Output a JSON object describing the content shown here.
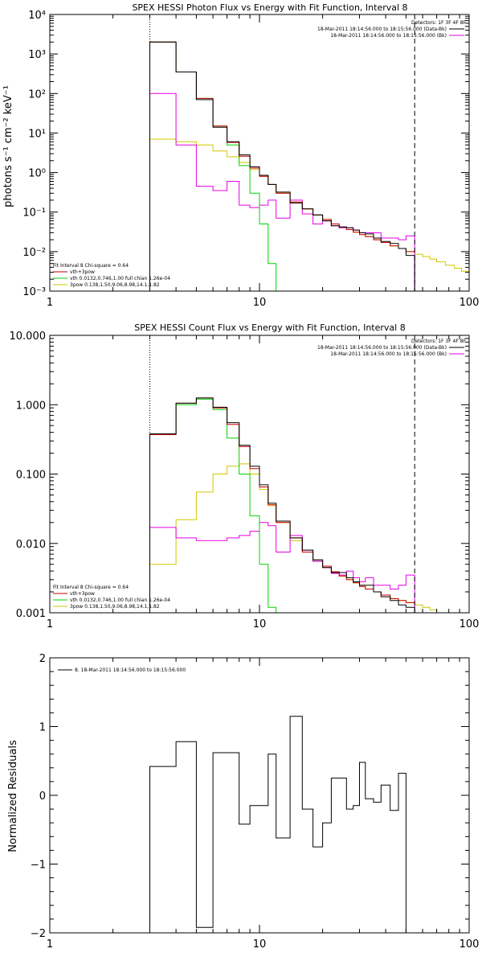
{
  "figure": {
    "xlabel": "",
    "colors": {
      "data": "#000000",
      "fit_total": "#c80000",
      "thermal": "#00d200",
      "power_law": "#d2c800",
      "background": "#e600e6"
    }
  },
  "chart_data": [
    {
      "type": "line",
      "title": "SPEX HESSI Photon Flux vs Energy with Fit Function, Interval 8",
      "ylabel": "photons s⁻¹ cm⁻² keV⁻¹",
      "xlim": [
        1,
        100
      ],
      "ylim": [
        0.001,
        10000
      ],
      "xscale": "log",
      "yscale": "log",
      "xticks": [
        1,
        10,
        100
      ],
      "xtick_labels": [
        "1",
        "10",
        "100"
      ],
      "yticks": [
        0.001,
        0.01,
        0.1,
        1,
        10,
        100,
        1000,
        10000
      ],
      "ytick_labels": [
        "10⁻³",
        "10⁻²",
        "10⁻¹",
        "10⁰",
        "10¹",
        "10²",
        "10³",
        "10⁴"
      ],
      "fit_range": [
        3,
        55
      ],
      "bin_edges": [
        3,
        4,
        5,
        6,
        7,
        8,
        9,
        10,
        11,
        12,
        14,
        16,
        18,
        20,
        22,
        24,
        26,
        28,
        30,
        32,
        35,
        38,
        42,
        46,
        50,
        55,
        60,
        65,
        70,
        77,
        85,
        92,
        100
      ],
      "legend_right": {
        "detectors": "Detectors: 1F 3F 4F 8F",
        "entries": [
          {
            "label": "18-Mar-2011 18:14:56.000 to 18:15:56.000 (Data-Bk)",
            "color_key": "data"
          },
          {
            "label": "18-Mar-2011 18:14:56.000 to 18:15:56.000 (Bk)",
            "color_key": "background"
          }
        ]
      },
      "legend_left": {
        "header": "Fit Interval 8   Chi-square = 0.64",
        "entries": [
          {
            "label": "vth+3pow",
            "color_key": "fit_total"
          },
          {
            "label": "vth 0.0132,0.746,1.00  full chian 1.26e-04",
            "color_key": "thermal"
          },
          {
            "label": "3pow 0.138,1.50,9.06,8.98,14.1,1.82",
            "color_key": "power_law"
          }
        ]
      },
      "series": [
        {
          "color_key": "power_law",
          "values": [
            7,
            6,
            5,
            3.5,
            2.5,
            1.8,
            1.2,
            0.8,
            0.5,
            0.3,
            0.18,
            0.12,
            0.085,
            0.065,
            0.05,
            0.042,
            0.036,
            0.031,
            0.027,
            0.024,
            0.02,
            0.017,
            0.014,
            0.012,
            0.01,
            0.0085,
            0.0075,
            0.0065,
            0.0055,
            0.0045,
            0.0038,
            0.0032
          ]
        },
        {
          "color_key": "background",
          "values": [
            100,
            5,
            0.45,
            0.35,
            0.6,
            0.15,
            0.13,
            0.15,
            0.2,
            0.07,
            0.2,
            0.09,
            0.05,
            0.06,
            0.045,
            0.04,
            0.04,
            0.035,
            0.03,
            0.03,
            0.03,
            0.022,
            0.022,
            0.02,
            0.025
          ]
        },
        {
          "color_key": "thermal",
          "values": [
            2000,
            350,
            75,
            15,
            5,
            1.5,
            0.3,
            0.05,
            0.005,
            0.001,
            0.0009
          ]
        },
        {
          "color_key": "fit_total",
          "values": [
            2000,
            350,
            75,
            15,
            5.8,
            2.6,
            1.3,
            0.8,
            0.5,
            0.3,
            0.18,
            0.12,
            0.085,
            0.065,
            0.05,
            0.042,
            0.036,
            0.031,
            0.027,
            0.024,
            0.02,
            0.017,
            0.014,
            0.012,
            0.01
          ]
        },
        {
          "color_key": "data",
          "values": [
            2000,
            350,
            70,
            14,
            6,
            2.8,
            1.4,
            0.85,
            0.5,
            0.32,
            0.17,
            0.12,
            0.085,
            0.06,
            0.045,
            0.042,
            0.04,
            0.035,
            0.03,
            0.028,
            0.022,
            0.018,
            0.016,
            0.012,
            0.008
          ]
        }
      ]
    },
    {
      "type": "line",
      "title": "SPEX HESSI Count Flux vs Energy with Fit Function, Interval 8",
      "ylabel": "",
      "xlim": [
        1,
        100
      ],
      "ylim": [
        0.001,
        10
      ],
      "xscale": "log",
      "yscale": "log",
      "xticks": [
        1,
        10,
        100
      ],
      "xtick_labels": [
        "1",
        "10",
        "100"
      ],
      "yticks": [
        0.001,
        0.01,
        0.1,
        1,
        10
      ],
      "ytick_labels": [
        "0.001",
        "0.010",
        "0.100",
        "1.000",
        "10.000"
      ],
      "fit_range": [
        3,
        55
      ],
      "bin_edges": [
        3,
        4,
        5,
        6,
        7,
        8,
        9,
        10,
        11,
        12,
        14,
        16,
        18,
        20,
        22,
        24,
        26,
        28,
        30,
        32,
        35,
        38,
        42,
        46,
        50,
        55,
        60,
        65,
        70,
        77,
        85
      ],
      "legend_right": {
        "detectors": "Detectors: 1F 3F 4F 8F",
        "entries": [
          {
            "label": "18-Mar-2011 18:14:56.000 to 18:15:56.000 (Data-Bk)",
            "color_key": "data"
          },
          {
            "label": "18-Mar-2011 18:14:56.000 to 18:15:56.000 (Bk)",
            "color_key": "background"
          }
        ]
      },
      "legend_left": {
        "header": "Fit Interval 8   Chi-square = 0.64",
        "entries": [
          {
            "label": "vth+3pow",
            "color_key": "fit_total"
          },
          {
            "label": "vth 0.0132,0.746,1.00  full chian 1.26e-04",
            "color_key": "thermal"
          },
          {
            "label": "3pow 0.138,1.50,9.06,8.98,14.1,1.82",
            "color_key": "power_law"
          }
        ]
      },
      "series": [
        {
          "color_key": "power_law",
          "values": [
            0.005,
            0.022,
            0.055,
            0.1,
            0.13,
            0.14,
            0.1,
            0.06,
            0.035,
            0.02,
            0.011,
            0.0075,
            0.0055,
            0.0045,
            0.0038,
            0.0034,
            0.003,
            0.0027,
            0.0024,
            0.0022,
            0.002,
            0.0018,
            0.0016,
            0.0015,
            0.0014,
            0.0013,
            0.0012,
            0.0011,
            0.001,
            0.0009
          ]
        },
        {
          "color_key": "background",
          "values": [
            0.017,
            0.012,
            0.011,
            0.011,
            0.012,
            0.013,
            0.015,
            0.02,
            0.018,
            0.0075,
            0.013,
            0.008,
            0.0055,
            0.0045,
            0.0037,
            0.0035,
            0.004,
            0.0032,
            0.0028,
            0.0032,
            0.0025,
            0.0025,
            0.0022,
            0.0025,
            0.0035
          ]
        },
        {
          "color_key": "thermal",
          "values": [
            0.37,
            1.0,
            1.2,
            0.85,
            0.33,
            0.1,
            0.025,
            0.005,
            0.0012,
            0.0008
          ]
        },
        {
          "color_key": "fit_total",
          "values": [
            0.37,
            1.05,
            1.25,
            0.9,
            0.52,
            0.25,
            0.12,
            0.065,
            0.036,
            0.02,
            0.012,
            0.0075,
            0.0058,
            0.0047,
            0.0039,
            0.0034,
            0.003,
            0.0027,
            0.0024,
            0.0022,
            0.002,
            0.0018,
            0.0016,
            0.0015,
            0.0014
          ]
        },
        {
          "color_key": "data",
          "values": [
            0.38,
            1.05,
            1.25,
            0.92,
            0.55,
            0.26,
            0.13,
            0.07,
            0.038,
            0.021,
            0.012,
            0.008,
            0.0058,
            0.0045,
            0.0038,
            0.0038,
            0.0032,
            0.0028,
            0.0025,
            0.0025,
            0.002,
            0.0017,
            0.0015,
            0.0013,
            0.0012
          ]
        }
      ]
    },
    {
      "type": "line",
      "title": "",
      "ylabel": "Normalized Residuals",
      "xlim": [
        1,
        100
      ],
      "ylim": [
        -2,
        2
      ],
      "xscale": "log",
      "yscale": "linear",
      "xticks": [
        1,
        10,
        100
      ],
      "xtick_labels": [
        "1",
        "10",
        "100"
      ],
      "yticks": [
        -2,
        -1,
        0,
        1,
        2
      ],
      "ytick_labels": [
        "−2",
        "−1",
        "0",
        "1",
        "2"
      ],
      "legend": {
        "entries": [
          {
            "label": "8. 18-Mar-2011 18:14:56.000 to 18:15:56.000",
            "color_key": "data"
          }
        ]
      },
      "bin_edges": [
        3,
        4,
        5,
        6,
        7,
        8,
        9,
        10,
        11,
        12,
        14,
        16,
        18,
        20,
        22,
        24,
        26,
        28,
        30,
        32,
        35,
        38,
        42,
        46,
        50,
        55
      ],
      "series": [
        {
          "color_key": "data",
          "values": [
            0.42,
            0.78,
            -1.92,
            0.62,
            0.62,
            -0.42,
            -0.15,
            -0.15,
            0.6,
            -0.62,
            1.15,
            -0.2,
            -0.75,
            -0.4,
            0.25,
            0.25,
            -0.2,
            -0.15,
            0.48,
            -0.05,
            -0.1,
            0.15,
            -0.22,
            0.32,
            -2.0
          ]
        }
      ]
    }
  ]
}
